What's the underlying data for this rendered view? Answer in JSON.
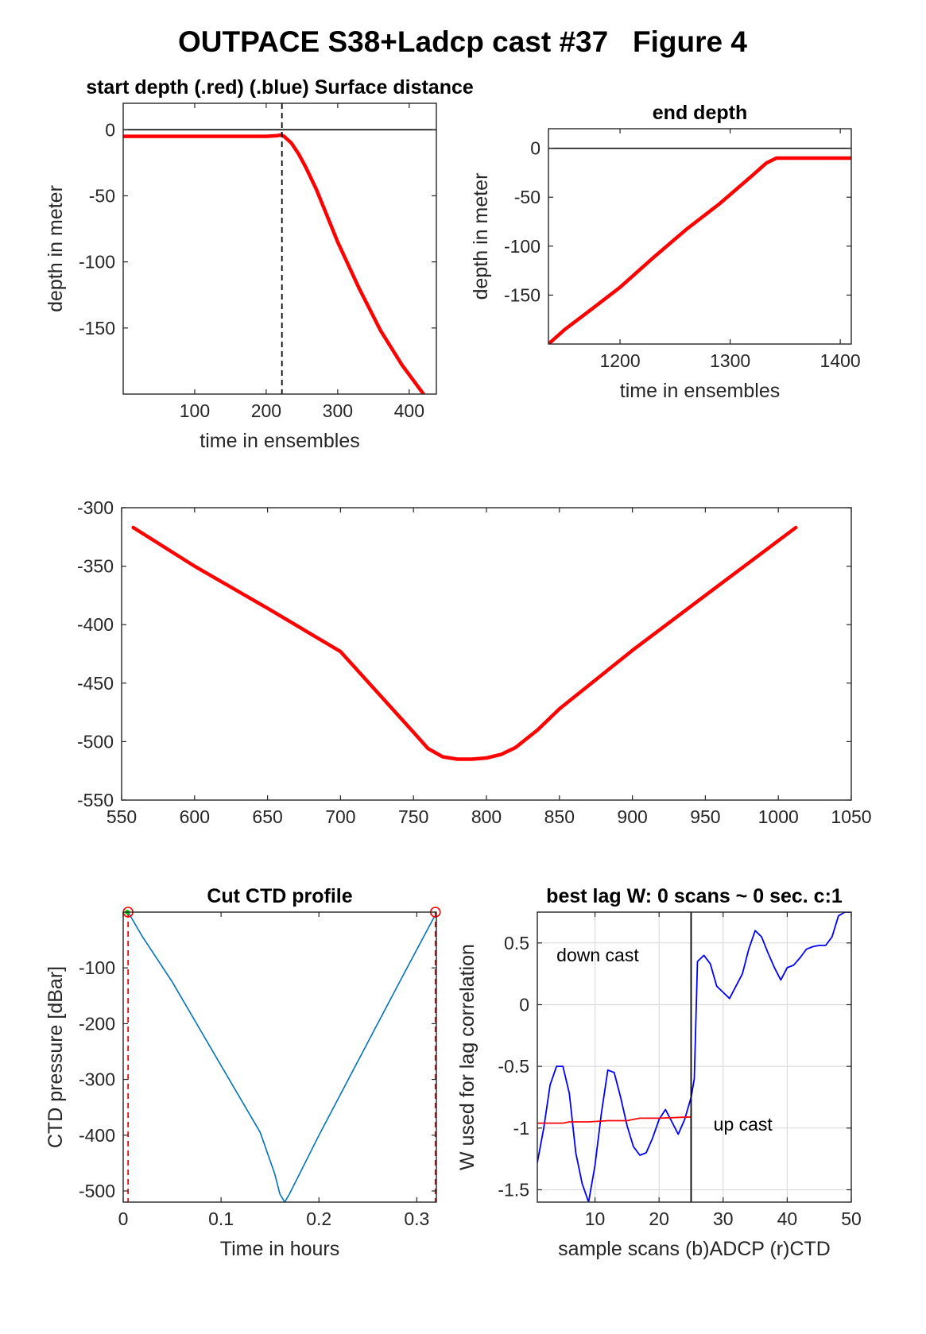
{
  "figure_title": "OUTPACE S38+Ladcp cast #37   Figure 4",
  "colors": {
    "red": "#ff0000",
    "blue": "#0000ff",
    "matlab_blue": "#0072bd",
    "green": "#00cc00",
    "axis": "#262626",
    "grid": "#d9d9d9"
  },
  "chart_data": [
    {
      "id": "start",
      "type": "line",
      "title": "start depth (.red) (.blue) Surface distance",
      "xlabel": "time in ensembles",
      "ylabel": "depth in meter",
      "xlim": [
        0,
        438
      ],
      "ylim": [
        -200,
        20
      ],
      "xticks": [
        100,
        200,
        300,
        400
      ],
      "xtick_labels": [
        "100",
        "200",
        "300",
        "400"
      ],
      "yticks": [
        0,
        -50,
        -100,
        -150
      ],
      "ytick_labels": [
        "0",
        "-50",
        "-100",
        "-150"
      ],
      "grid": false,
      "series": [
        {
          "color": "#ff0000",
          "x": [
            0,
            50,
            100,
            150,
            200,
            215,
            220,
            225,
            235,
            245,
            255,
            270,
            285,
            300,
            330,
            360,
            390,
            420,
            437
          ],
          "y": [
            -5,
            -5,
            -5,
            -5,
            -5,
            -4.5,
            -4,
            -5,
            -10,
            -18,
            -28,
            -45,
            -65,
            -85,
            -120,
            -152,
            -178,
            -200,
            -215
          ]
        }
      ],
      "vlines": [
        {
          "x": 222,
          "style": "dashed",
          "color": "#000000"
        }
      ],
      "hlines": [
        {
          "y": 0,
          "color": "#000000"
        }
      ]
    },
    {
      "id": "end",
      "type": "line",
      "title": "end depth",
      "xlabel": "time in ensembles",
      "ylabel": "depth in meter",
      "xlim": [
        1135,
        1410
      ],
      "ylim": [
        -200,
        20
      ],
      "xticks": [
        1200,
        1300,
        1400
      ],
      "xtick_labels": [
        "1200",
        "1300",
        "1400"
      ],
      "yticks": [
        0,
        -50,
        -100,
        -150
      ],
      "ytick_labels": [
        "0",
        "-50",
        "-100",
        "-150"
      ],
      "grid": false,
      "series": [
        {
          "color": "#ff0000",
          "x": [
            1135,
            1150,
            1170,
            1200,
            1230,
            1260,
            1290,
            1320,
            1333,
            1342,
            1360,
            1410
          ],
          "y": [
            -200,
            -185,
            -168,
            -142,
            -112,
            -83,
            -57,
            -28,
            -15,
            -10,
            -10,
            -10
          ]
        }
      ],
      "hlines": [
        {
          "y": 0,
          "color": "#000000"
        }
      ]
    },
    {
      "id": "middle",
      "type": "line",
      "title": "",
      "xlabel": "",
      "ylabel": "",
      "xlim": [
        550,
        1050
      ],
      "ylim": [
        -550,
        -300
      ],
      "xticks": [
        550,
        600,
        650,
        700,
        750,
        800,
        850,
        900,
        950,
        1000,
        1050
      ],
      "xtick_labels": [
        "550",
        "600",
        "650",
        "700",
        "750",
        "800",
        "850",
        "900",
        "950",
        "1000",
        "1050"
      ],
      "yticks": [
        -300,
        -350,
        -400,
        -450,
        -500,
        -550
      ],
      "ytick_labels": [
        "-300",
        "-350",
        "-400",
        "-450",
        "-500",
        "-550"
      ],
      "grid": false,
      "series": [
        {
          "color": "#ff0000",
          "x": [
            558,
            600,
            650,
            700,
            750,
            760,
            770,
            780,
            790,
            800,
            810,
            820,
            835,
            850,
            900,
            950,
            1012
          ],
          "y": [
            -317,
            -350,
            -386,
            -423,
            -492,
            -506,
            -513,
            -515,
            -515,
            -514,
            -511,
            -505,
            -490,
            -472,
            -422,
            -375,
            -317
          ]
        }
      ]
    },
    {
      "id": "ctd",
      "type": "line",
      "title": "Cut CTD profile",
      "xlabel": "Time in hours",
      "ylabel": "CTD pressure [dBar]",
      "xlim": [
        0,
        0.32
      ],
      "ylim": [
        -520,
        0
      ],
      "xticks": [
        0,
        0.1,
        0.2,
        0.3
      ],
      "xtick_labels": [
        "0",
        "0.1",
        "0.2",
        "0.3"
      ],
      "yticks": [
        -100,
        -200,
        -300,
        -400,
        -500
      ],
      "ytick_labels": [
        "-100",
        "-200",
        "-300",
        "-400",
        "-500"
      ],
      "grid": false,
      "series": [
        {
          "color": "#0072bd",
          "x": [
            0.005,
            0.02,
            0.05,
            0.08,
            0.11,
            0.14,
            0.155,
            0.16,
            0.165,
            0.17,
            0.2,
            0.23,
            0.26,
            0.29,
            0.318
          ],
          "y": [
            0,
            -45,
            -125,
            -215,
            -305,
            -395,
            -470,
            -505,
            -520,
            -505,
            -400,
            -300,
            -200,
            -100,
            -8
          ]
        }
      ],
      "vlines": [
        {
          "x": 0.005,
          "style": "dashed",
          "color": "#ff0000"
        },
        {
          "x": 0.319,
          "style": "dashed",
          "color": "#ff0000"
        }
      ],
      "markers": [
        {
          "x": 0.005,
          "y": 0,
          "shape": "circle",
          "color": "#ff0000"
        },
        {
          "x": 0.319,
          "y": 0,
          "shape": "circle",
          "color": "#ff0000"
        },
        {
          "x": 0.005,
          "y": 0,
          "shape": "dot",
          "color": "#00cc00"
        }
      ]
    },
    {
      "id": "lag",
      "type": "line",
      "title": "best lag W: 0 scans ~ 0 sec.  c:1",
      "xlabel": "sample scans (b)ADCP (r)CTD",
      "ylabel": "W used for lag correlation",
      "xlim": [
        1,
        50
      ],
      "ylim": [
        -1.6,
        0.75
      ],
      "xticks": [
        10,
        20,
        30,
        40,
        50
      ],
      "xtick_labels": [
        "10",
        "20",
        "30",
        "40",
        "50"
      ],
      "yticks": [
        0.5,
        0,
        -0.5,
        -1,
        -1.5
      ],
      "ytick_labels": [
        "0.5",
        "0",
        "-0.5",
        "-1",
        "-1.5"
      ],
      "grid": true,
      "series": [
        {
          "color": "#0000ff",
          "x": [
            1,
            2,
            3,
            4,
            5,
            6,
            7,
            8,
            9,
            10,
            11,
            12,
            13,
            14,
            15,
            16,
            17,
            18,
            19,
            20,
            21,
            22,
            23,
            24,
            25,
            25.5,
            26,
            27,
            28,
            29,
            30,
            31,
            32,
            33,
            34,
            35,
            36,
            37,
            38,
            39,
            40,
            41,
            42,
            43,
            44,
            45,
            46,
            47,
            48,
            49,
            50
          ],
          "y": [
            -1.28,
            -1.0,
            -0.65,
            -0.5,
            -0.5,
            -0.72,
            -1.2,
            -1.45,
            -1.6,
            -1.3,
            -0.88,
            -0.53,
            -0.55,
            -0.75,
            -0.98,
            -1.15,
            -1.22,
            -1.2,
            -1.08,
            -0.93,
            -0.85,
            -0.95,
            -1.05,
            -0.93,
            -0.75,
            -0.6,
            0.35,
            0.4,
            0.33,
            0.15,
            0.1,
            0.05,
            0.15,
            0.25,
            0.45,
            0.6,
            0.55,
            0.42,
            0.3,
            0.2,
            0.3,
            0.32,
            0.38,
            0.45,
            0.47,
            0.48,
            0.48,
            0.55,
            0.72,
            0.75,
            0.75
          ]
        },
        {
          "color": "#ff0000",
          "x": [
            1,
            5,
            6,
            9,
            12,
            15,
            16,
            17,
            20,
            25
          ],
          "y": [
            -0.96,
            -0.96,
            -0.95,
            -0.95,
            -0.94,
            -0.94,
            -0.93,
            -0.92,
            -0.92,
            -0.91
          ]
        }
      ],
      "vlines": [
        {
          "x": 25,
          "style": "solid",
          "color": "#000000"
        }
      ],
      "annotations": [
        {
          "text": "down cast",
          "x": 4,
          "y": 0.35
        },
        {
          "text": "up cast",
          "x": 28.5,
          "y": -1.02
        }
      ]
    }
  ]
}
